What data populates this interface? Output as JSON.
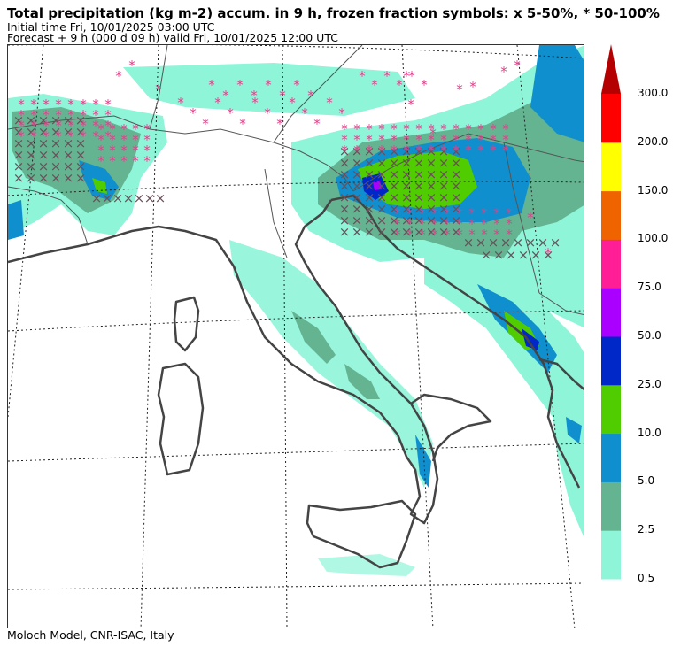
{
  "header": {
    "title": "Total precipitation (kg m-2) accum. in 9 h, frozen fraction symbols: x 5-50%, * 50-100%",
    "initial_time": "Initial time  Fri, 10/01/2025  03:00 UTC",
    "forecast": "Forecast  +   9 h  (000 d 09 h)  valid Fri, 10/01/2025 12:00 UTC"
  },
  "footer": {
    "credit": "Moloch Model, CNR-ISAC, Italy"
  },
  "legend": {
    "levels": [
      {
        "label": "0.5",
        "color": "#8ef5d8"
      },
      {
        "label": "2.5",
        "color": "#64b491"
      },
      {
        "label": "5.0",
        "color": "#0f8fcd"
      },
      {
        "label": "10.0",
        "color": "#50cd00"
      },
      {
        "label": "25.0",
        "color": "#0028c8"
      },
      {
        "label": "50.0",
        "color": "#aa00ff"
      },
      {
        "label": "75.0",
        "color": "#ff1e96"
      },
      {
        "label": "100.0",
        "color": "#f06400"
      },
      {
        "label": "150.0",
        "color": "#ffff00"
      },
      {
        "label": "200.0",
        "color": "#ff0000"
      },
      {
        "label": "300.0",
        "color": "#b40000"
      }
    ]
  },
  "symbols": {
    "x_color": "#6b4f5a",
    "star_color": "#e0408a"
  }
}
